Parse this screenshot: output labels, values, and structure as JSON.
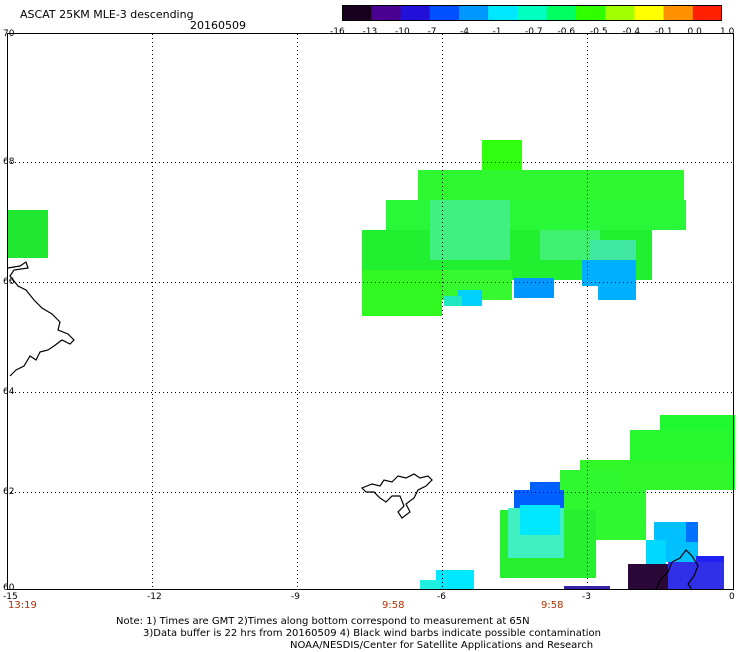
{
  "header": {
    "title": "ASCAT 25KM MLE-3 descending",
    "date": "20160509"
  },
  "colorbar": {
    "labels": [
      "-16",
      "-13",
      "-10",
      "-7",
      "-4",
      "-1",
      "-0.7",
      "-0.6",
      "-0.5",
      "-0.4",
      "-0.1",
      "0.0",
      "1.0"
    ],
    "colors": [
      "#1a0020",
      "#4a0090",
      "#2010d8",
      "#0050ff",
      "#0098ff",
      "#00e8ff",
      "#00ffc0",
      "#00ff60",
      "#30ff00",
      "#a0ff00",
      "#ffff00",
      "#ff9000",
      "#ff2000"
    ]
  },
  "map": {
    "lat_labels": [
      "70",
      "68",
      "66",
      "64",
      "62",
      "60"
    ],
    "lon_labels": [
      "-15",
      "-12",
      "-9",
      "-6",
      "-3",
      "0"
    ],
    "time_labels": [
      "13:19",
      "9:58",
      "9:58"
    ]
  },
  "footer": {
    "line1": "Note: 1) Times are GMT 2)Times along bottom correspond to measurement at 65N",
    "line2": "3)Data buffer is 22 hrs from 20160509 4) Black wind barbs indicate possible contamination",
    "line3": "NOAA/NESDIS/Center for Satellite Applications and Research"
  }
}
